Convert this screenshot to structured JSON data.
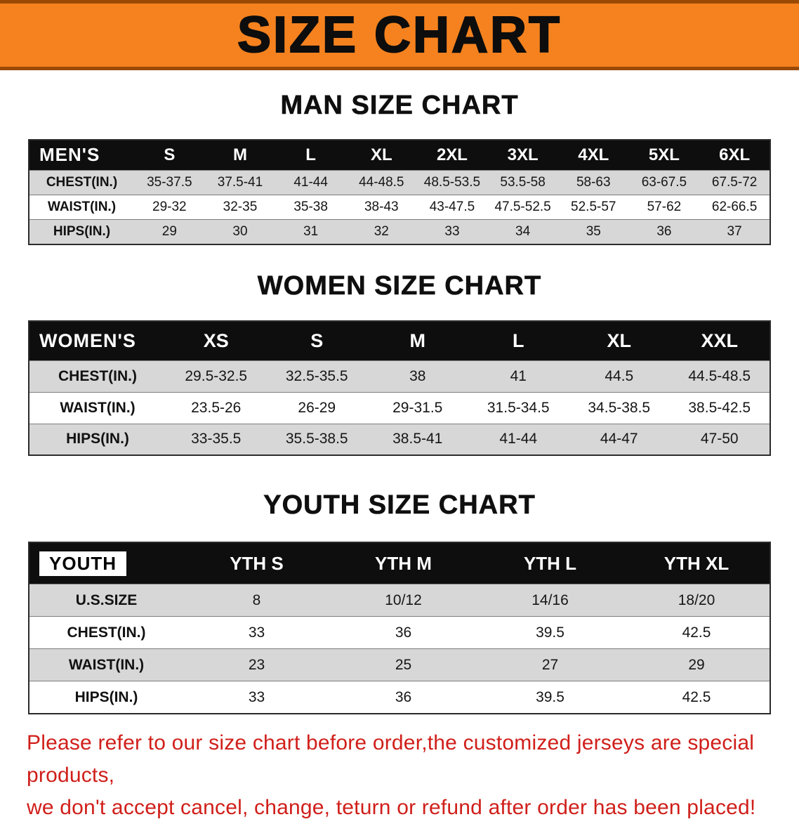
{
  "banner": {
    "title": "SIZE CHART"
  },
  "tables": {
    "men": {
      "section_title": "MAN SIZE CHART",
      "header": [
        "MEN'S",
        "S",
        "M",
        "L",
        "XL",
        "2XL",
        "3XL",
        "4XL",
        "5XL",
        "6XL"
      ],
      "rows": [
        {
          "label": "CHEST(IN.)",
          "values": [
            "35-37.5",
            "37.5-41",
            "41-44",
            "44-48.5",
            "48.5-53.5",
            "53.5-58",
            "58-63",
            "63-67.5",
            "67.5-72"
          ]
        },
        {
          "label": "WAIST(IN.)",
          "values": [
            "29-32",
            "32-35",
            "35-38",
            "38-43",
            "43-47.5",
            "47.5-52.5",
            "52.5-57",
            "57-62",
            "62-66.5"
          ]
        },
        {
          "label": "HIPS(IN.)",
          "values": [
            "29",
            "30",
            "31",
            "32",
            "33",
            "34",
            "35",
            "36",
            "37"
          ]
        }
      ]
    },
    "women": {
      "section_title": "WOMEN SIZE CHART",
      "header": [
        "WOMEN'S",
        "XS",
        "S",
        "M",
        "L",
        "XL",
        "XXL"
      ],
      "rows": [
        {
          "label": "CHEST(IN.)",
          "values": [
            "29.5-32.5",
            "32.5-35.5",
            "38",
            "41",
            "44.5",
            "44.5-48.5"
          ]
        },
        {
          "label": "WAIST(IN.)",
          "values": [
            "23.5-26",
            "26-29",
            "29-31.5",
            "31.5-34.5",
            "34.5-38.5",
            "38.5-42.5"
          ]
        },
        {
          "label": "HIPS(IN.)",
          "values": [
            "33-35.5",
            "35.5-38.5",
            "38.5-41",
            "41-44",
            "44-47",
            "47-50"
          ]
        }
      ]
    },
    "youth": {
      "section_title": "YOUTH SIZE CHART",
      "header": [
        "YOUTH",
        "YTH S",
        "YTH M",
        "YTH L",
        "YTH XL"
      ],
      "rows": [
        {
          "label": "U.S.SIZE",
          "values": [
            "8",
            "10/12",
            "14/16",
            "18/20"
          ]
        },
        {
          "label": "CHEST(IN.)",
          "values": [
            "33",
            "36",
            "39.5",
            "42.5"
          ]
        },
        {
          "label": "WAIST(IN.)",
          "values": [
            "23",
            "25",
            "27",
            "29"
          ]
        },
        {
          "label": "HIPS(IN.)",
          "values": [
            "33",
            "36",
            "39.5",
            "42.5"
          ]
        }
      ]
    }
  },
  "disclaimer": {
    "line1": "Please refer to our size chart before order,the customized jerseys are special products,",
    "line2": "we don't accept cancel, change, teturn or refund after order has been placed!"
  },
  "colors": {
    "banner_bg": "#f5821f",
    "banner_border": "#9a4a05",
    "table_header_bg": "#0e0e0e",
    "row_shaded_bg": "#d7d7d7",
    "row_plain_bg": "#ffffff",
    "disclaimer_color": "#d01f1a"
  }
}
